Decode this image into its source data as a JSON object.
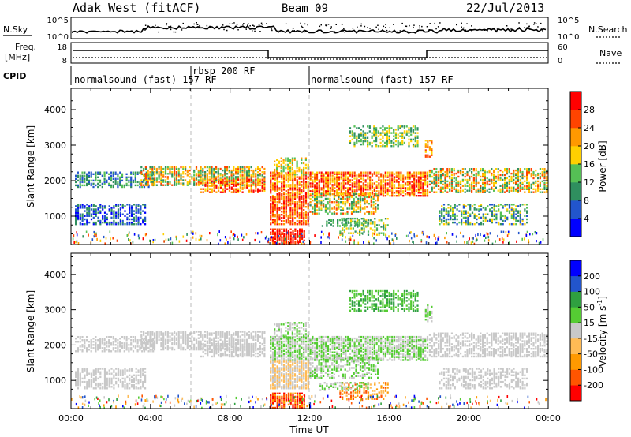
{
  "header": {
    "title": "Adak West (fitACF)",
    "beam": "Beam 09",
    "date": "22/Jul/2013"
  },
  "labels": {
    "nsky": "N.Sky",
    "nsearch": "N.Search",
    "freq_line1": "Freq.",
    "freq_line2": "[MHz]",
    "nave": "Nave",
    "cpid": "CPID",
    "nsky_ticks": [
      "10^5",
      "10^0"
    ],
    "nsearch_ticks": [
      "10^5",
      "10^0"
    ],
    "freq_ticks": [
      "18",
      "8"
    ],
    "nave_ticks": [
      "60",
      "0"
    ]
  },
  "cpid_segments": [
    {
      "label": "normalsound (fast) 157 RF",
      "start_hour": 0
    },
    {
      "label": "rbsp 200 RF",
      "start_hour": 6
    },
    {
      "label": "normalsound (fast) 157 RF",
      "start_hour": 12
    }
  ],
  "chart_data": [
    {
      "type": "heatmap",
      "name": "power",
      "ylabel": "Slant Range [km]",
      "yticks": [
        "1000",
        "2000",
        "3000",
        "4000"
      ],
      "ylim": [
        200,
        4600
      ],
      "xlim": [
        0,
        24
      ],
      "colorbar_label": "Power [dB]",
      "colorbar_ticks": [
        "4",
        "8",
        "12",
        "16",
        "20",
        "24",
        "28"
      ],
      "colorscale": [
        "#0000ff",
        "#2255cc",
        "#2f8f5f",
        "#55c055",
        "#ffd000",
        "#ff9900",
        "#ff4400",
        "#ff0000"
      ]
    },
    {
      "type": "heatmap",
      "name": "velocity",
      "ylabel": "Slant Range [km]",
      "yticks": [
        "1000",
        "2000",
        "3000",
        "4000"
      ],
      "ylim": [
        200,
        4600
      ],
      "xlim": [
        0,
        24
      ],
      "xlabel": "Time UT",
      "xticks": [
        "00:00",
        "04:00",
        "08:00",
        "12:00",
        "16:00",
        "20:00",
        "00:00"
      ],
      "colorbar_label": "Velocity [m s",
      "colorbar_label_sup": "-1",
      "colorbar_label_end": "]",
      "colorbar_ticks": [
        "-200",
        "-100",
        "-50",
        "-15",
        "15",
        "50",
        "100",
        "200"
      ],
      "colorscale": [
        "#ff0000",
        "#ff5500",
        "#ff9900",
        "#ffbb55",
        "#c8c8c8",
        "#55cc33",
        "#2fa040",
        "#2255cc",
        "#0000ff"
      ]
    }
  ]
}
